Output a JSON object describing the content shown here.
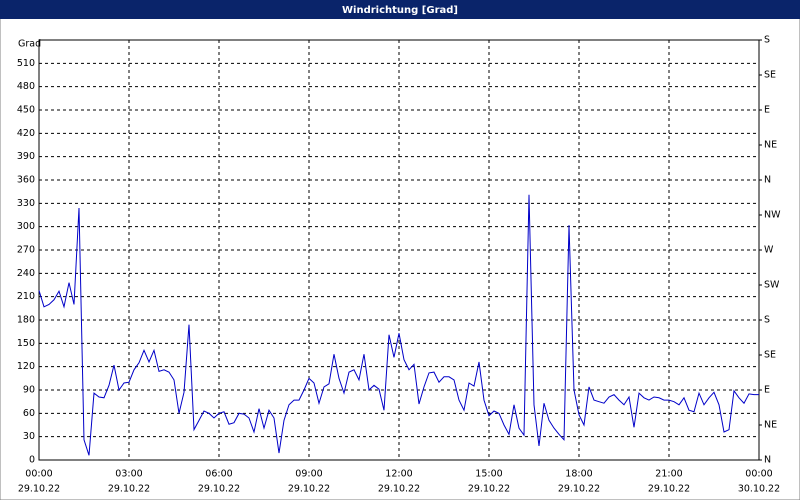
{
  "chart_data": {
    "type": "line",
    "title": "Windrichtung [Grad]",
    "y_label": "Grad",
    "x": [
      0,
      10,
      20,
      30,
      40,
      50,
      60,
      70,
      80,
      90,
      100,
      110,
      120,
      130,
      140,
      150,
      160,
      170,
      180,
      190,
      200,
      210,
      220,
      230,
      240,
      250,
      260,
      270,
      280,
      290,
      300,
      310,
      320,
      330,
      340,
      350,
      360,
      370,
      380,
      390,
      400,
      410,
      420,
      430,
      440,
      450,
      460,
      470,
      480,
      490,
      500,
      510,
      520,
      530,
      540,
      550,
      560,
      570,
      580,
      590,
      600,
      610,
      620,
      630,
      640,
      650,
      660,
      670,
      680,
      690,
      700,
      710,
      720,
      730,
      740,
      750,
      760,
      770,
      780,
      790,
      800,
      810,
      820,
      830,
      840,
      850,
      860,
      870,
      880,
      890,
      900,
      910,
      920,
      930,
      940,
      950,
      960,
      970,
      980,
      990,
      1000,
      1010,
      1020,
      1030,
      1040,
      1050,
      1060,
      1070,
      1080,
      1090,
      1100,
      1110,
      1120,
      1130,
      1140,
      1150,
      1160,
      1170,
      1180,
      1190,
      1200,
      1210,
      1220,
      1230,
      1240,
      1250,
      1260,
      1270,
      1280,
      1290,
      1300,
      1310,
      1320,
      1330,
      1340,
      1350,
      1360,
      1370,
      1380,
      1390,
      1400,
      1410,
      1420,
      1430,
      1440
    ],
    "series": [
      {
        "color": "#0000c8",
        "values": [
          218,
          197,
          200,
          206,
          217,
          197,
          228,
          200,
          324,
          26,
          6,
          86,
          81,
          80,
          96,
          122,
          90,
          99,
          100,
          116,
          125,
          141,
          126,
          141,
          114,
          116,
          113,
          103,
          60,
          87,
          174,
          39,
          51,
          63,
          60,
          54,
          60,
          62,
          46,
          48,
          60,
          59,
          54,
          36,
          66,
          41,
          64,
          54,
          9,
          51,
          71,
          77,
          77,
          90,
          105,
          99,
          73,
          94,
          98,
          136,
          105,
          86,
          113,
          116,
          103,
          136,
          90,
          96,
          91,
          64,
          161,
          132,
          163,
          129,
          116,
          123,
          72,
          94,
          112,
          113,
          100,
          107,
          107,
          103,
          77,
          64,
          99,
          95,
          126,
          77,
          57,
          63,
          60,
          45,
          33,
          71,
          41,
          32,
          341,
          71,
          18,
          73,
          51,
          41,
          33,
          26,
          302,
          90,
          58,
          45,
          94,
          77,
          75,
          73,
          81,
          84,
          77,
          71,
          81,
          42,
          86,
          80,
          77,
          81,
          80,
          77,
          77,
          75,
          71,
          80,
          64,
          62,
          86,
          71,
          80,
          87,
          71,
          36,
          39,
          89,
          80,
          73,
          85,
          84,
          84
        ]
      }
    ],
    "xlim": [
      0,
      1440
    ],
    "xticks": [
      {
        "value": 0,
        "label": "00:00"
      },
      {
        "value": 180,
        "label": "03:00"
      },
      {
        "value": 360,
        "label": "06:00"
      },
      {
        "value": 540,
        "label": "09:00"
      },
      {
        "value": 720,
        "label": "12:00"
      },
      {
        "value": 900,
        "label": "15:00"
      },
      {
        "value": 1080,
        "label": "18:00"
      },
      {
        "value": 1260,
        "label": "21:00"
      },
      {
        "value": 1440,
        "label": "00:00"
      }
    ],
    "xtick_dates": [
      "29.10.22",
      "29.10.22",
      "29.10.22",
      "29.10.22",
      "29.10.22",
      "29.10.22",
      "29.10.22",
      "29.10.22",
      "30.10.22"
    ],
    "ylim": [
      0,
      540
    ],
    "yticks": [
      0,
      30,
      60,
      90,
      120,
      150,
      180,
      210,
      240,
      270,
      300,
      330,
      360,
      390,
      420,
      450,
      480,
      510
    ],
    "y2lim": [
      0,
      540
    ],
    "y2ticks": [
      {
        "value": 0,
        "label": "N"
      },
      {
        "value": 45,
        "label": "NE"
      },
      {
        "value": 90,
        "label": "E"
      },
      {
        "value": 135,
        "label": "SE"
      },
      {
        "value": 180,
        "label": "S"
      },
      {
        "value": 225,
        "label": "SW"
      },
      {
        "value": 270,
        "label": "W"
      },
      {
        "value": 315,
        "label": "NW"
      },
      {
        "value": 360,
        "label": "N"
      },
      {
        "value": 405,
        "label": "NE"
      },
      {
        "value": 450,
        "label": "E"
      },
      {
        "value": 495,
        "label": "SE"
      },
      {
        "value": 540,
        "label": "S"
      }
    ],
    "grid": true
  }
}
